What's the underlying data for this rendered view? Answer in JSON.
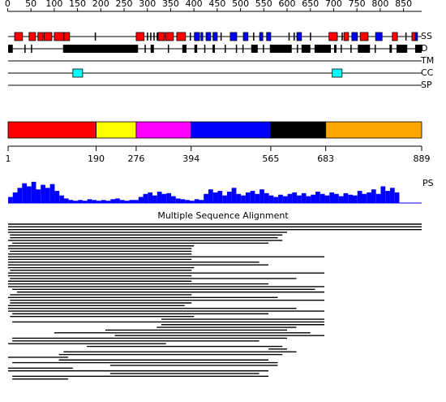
{
  "length": 889,
  "ruler": {
    "ticks": [
      0,
      50,
      100,
      150,
      200,
      250,
      300,
      350,
      400,
      450,
      500,
      550,
      600,
      650,
      700,
      750,
      800,
      850
    ]
  },
  "tracks": [
    {
      "label": "SS",
      "elements": [
        [
          15,
          32,
          "#ff0000"
        ],
        [
          46,
          60,
          "#ff0000"
        ],
        [
          65,
          76,
          "#ff0000"
        ],
        [
          78,
          95,
          "#ff0000"
        ],
        [
          100,
          121,
          "#ff0000"
        ],
        [
          121,
          133,
          "#ff0000"
        ],
        [
          187,
          189,
          "#000000"
        ],
        [
          276,
          293,
          "#ff0000"
        ],
        [
          299,
          301,
          "#000000"
        ],
        [
          306,
          308,
          "#000000"
        ],
        [
          313,
          315,
          "#000000"
        ],
        [
          320,
          322,
          "#000000"
        ],
        [
          323,
          337,
          "#ff0000"
        ],
        [
          339,
          356,
          "#ff0000"
        ],
        [
          363,
          382,
          "#ff0000"
        ],
        [
          391,
          393,
          "#000000"
        ],
        [
          401,
          412,
          "#0000ff"
        ],
        [
          415,
          419,
          "#0000ff"
        ],
        [
          426,
          436,
          "#0000ff"
        ],
        [
          441,
          450,
          "#0000ff"
        ],
        [
          457,
          459,
          "#000000"
        ],
        [
          478,
          492,
          "#0000ff"
        ],
        [
          506,
          516,
          "#0000ff"
        ],
        [
          527,
          529,
          "#000000"
        ],
        [
          541,
          548,
          "#0000ff"
        ],
        [
          556,
          565,
          "#0000ff"
        ],
        [
          603,
          605,
          "#000000"
        ],
        [
          614,
          616,
          "#000000"
        ],
        [
          621,
          631,
          "#0000ff"
        ],
        [
          649,
          651,
          "#000000"
        ],
        [
          690,
          708,
          "#ff0000"
        ],
        [
          717,
          719,
          "#000000"
        ],
        [
          722,
          732,
          "#ff0000"
        ],
        [
          739,
          751,
          "#0000ff"
        ],
        [
          757,
          774,
          "#ff0000"
        ],
        [
          790,
          804,
          "#0000ff"
        ],
        [
          826,
          837,
          "#ff0000"
        ],
        [
          854,
          856,
          "#000000"
        ],
        [
          868,
          875,
          "#ff0000"
        ],
        [
          875,
          880,
          "#0000ff"
        ]
      ]
    },
    {
      "label": "D",
      "elements": [
        [
          1,
          11,
          "#000000"
        ],
        [
          36,
          38,
          "#000000"
        ],
        [
          50,
          52,
          "#000000"
        ],
        [
          119,
          280,
          "#000000"
        ],
        [
          294,
          296,
          "#000000"
        ],
        [
          307,
          314,
          "#000000"
        ],
        [
          344,
          346,
          "#000000"
        ],
        [
          375,
          384,
          "#000000"
        ],
        [
          401,
          407,
          "#000000"
        ],
        [
          422,
          424,
          "#000000"
        ],
        [
          440,
          445,
          "#000000"
        ],
        [
          466,
          468,
          "#000000"
        ],
        [
          490,
          492,
          "#000000"
        ],
        [
          504,
          506,
          "#000000"
        ],
        [
          523,
          537,
          "#000000"
        ],
        [
          548,
          550,
          "#000000"
        ],
        [
          563,
          610,
          "#000000"
        ],
        [
          621,
          623,
          "#000000"
        ],
        [
          631,
          650,
          "#000000"
        ],
        [
          659,
          694,
          "#000000"
        ],
        [
          701,
          706,
          "#000000"
        ],
        [
          715,
          717,
          "#000000"
        ],
        [
          736,
          738,
          "#000000"
        ],
        [
          752,
          778,
          "#000000"
        ],
        [
          788,
          790,
          "#000000"
        ],
        [
          820,
          825,
          "#000000"
        ],
        [
          835,
          858,
          "#000000"
        ],
        [
          875,
          889,
          "#000000"
        ]
      ]
    },
    {
      "label": "TM",
      "elements": []
    },
    {
      "label": "CC",
      "elements": [
        [
          140,
          161,
          "#00ffff"
        ],
        [
          697,
          718,
          "#00ffff"
        ]
      ]
    },
    {
      "label": "SP",
      "elements": []
    }
  ],
  "domains": {
    "boundaries": [
      1,
      190,
      276,
      394,
      565,
      683,
      889
    ],
    "colors": [
      "#ff0000",
      "#ffff00",
      "#ff00ff",
      "#0000ff",
      "#000000",
      "#ffa500"
    ]
  },
  "profile": {
    "label": "PS",
    "step": 10,
    "ylim": [
      0,
      30
    ],
    "color": "#0000ff",
    "values": [
      8,
      14,
      20,
      26,
      22,
      28,
      18,
      24,
      20,
      25,
      16,
      10,
      6,
      4,
      3,
      4,
      3,
      5,
      4,
      3,
      4,
      3,
      5,
      6,
      4,
      3,
      4,
      4,
      8,
      12,
      14,
      10,
      15,
      12,
      13,
      9,
      6,
      5,
      4,
      3,
      5,
      4,
      12,
      18,
      14,
      16,
      10,
      15,
      20,
      12,
      10,
      14,
      16,
      12,
      18,
      13,
      10,
      8,
      11,
      9,
      12,
      14,
      10,
      13,
      9,
      11,
      15,
      12,
      10,
      14,
      12,
      9,
      13,
      11,
      10,
      16,
      12,
      14,
      18,
      12,
      22,
      16,
      20,
      14
    ]
  },
  "alignment": {
    "title": "Multiple Sequence Alignment",
    "hits": [
      [
        1,
        889
      ],
      [
        1,
        889
      ],
      [
        1,
        889
      ],
      [
        1,
        600
      ],
      [
        5,
        590
      ],
      [
        5,
        580
      ],
      [
        1,
        590
      ],
      [
        10,
        560
      ],
      [
        1,
        400
      ],
      [
        1,
        395
      ],
      [
        5,
        395
      ],
      [
        1,
        395
      ],
      [
        1,
        680
      ],
      [
        1,
        395
      ],
      [
        1,
        540
      ],
      [
        1,
        560
      ],
      [
        1,
        400
      ],
      [
        5,
        395
      ],
      [
        1,
        680
      ],
      [
        1,
        395
      ],
      [
        5,
        620
      ],
      [
        1,
        395
      ],
      [
        1,
        560
      ],
      [
        1,
        680
      ],
      [
        10,
        660
      ],
      [
        20,
        680
      ],
      [
        5,
        395
      ],
      [
        1,
        580
      ],
      [
        5,
        680
      ],
      [
        5,
        395
      ],
      [
        1,
        380
      ],
      [
        1,
        620
      ],
      [
        1,
        680
      ],
      [
        10,
        560
      ],
      [
        5,
        400
      ],
      [
        330,
        680
      ],
      [
        10,
        680
      ],
      [
        330,
        680
      ],
      [
        320,
        620
      ],
      [
        210,
        600
      ],
      [
        100,
        650
      ],
      [
        230,
        680
      ],
      [
        10,
        600
      ],
      [
        10,
        540
      ],
      [
        1,
        340
      ],
      [
        170,
        590
      ],
      [
        560,
        600
      ],
      [
        120,
        620
      ],
      [
        110,
        590
      ],
      [
        1,
        130
      ],
      [
        110,
        560
      ],
      [
        10,
        580
      ],
      [
        220,
        580
      ],
      [
        1,
        140
      ],
      [
        1,
        560
      ],
      [
        220,
        540
      ],
      [
        10,
        560
      ],
      [
        10,
        130
      ]
    ]
  }
}
